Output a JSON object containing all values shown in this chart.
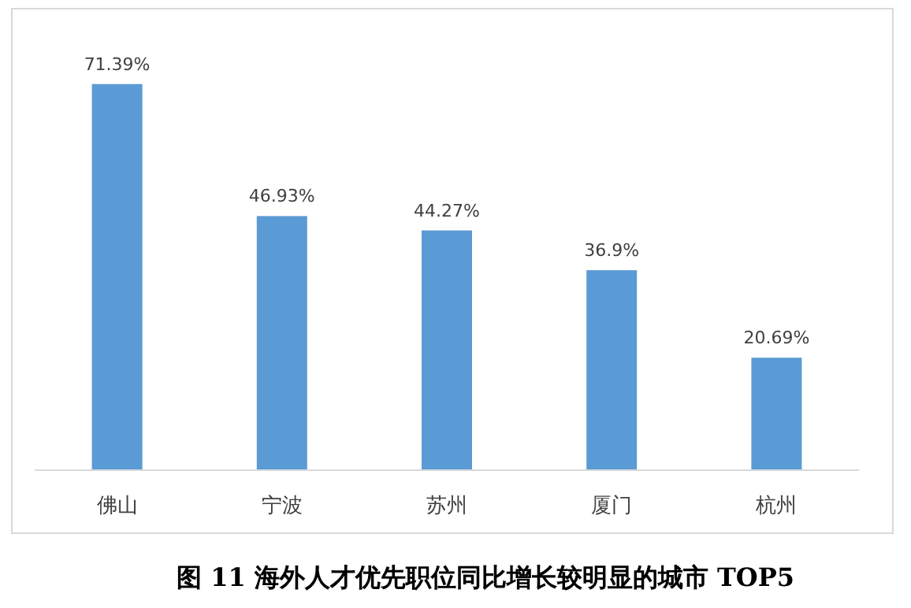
{
  "chart_data": {
    "type": "bar",
    "title": "图 11  海外人才优先职位同比增长较明显的城市 TOP5",
    "categories": [
      "佛山",
      "宁波",
      "苏州",
      "厦门",
      "杭州"
    ],
    "values": [
      71.39,
      46.93,
      44.27,
      36.9,
      20.69
    ],
    "value_labels": [
      "71.39%",
      "46.93%",
      "44.27%",
      "36.9%",
      "20.69%"
    ],
    "color": "#5b9bd5"
  }
}
